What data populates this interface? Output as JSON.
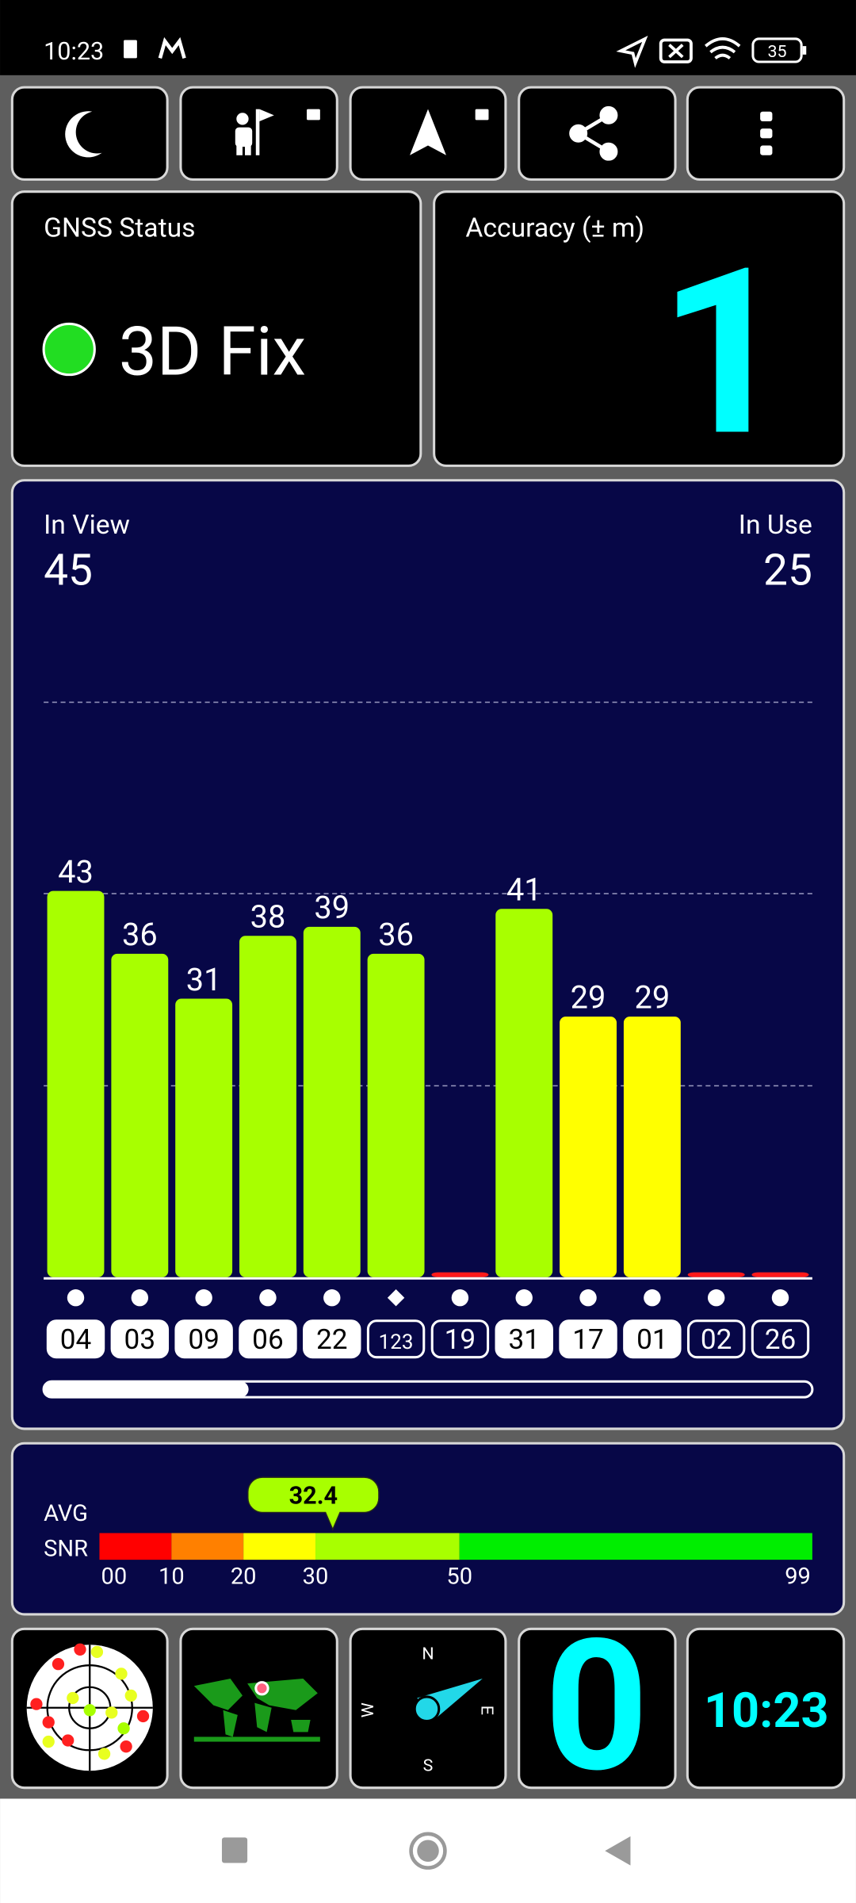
{
  "status_bar": {
    "time": "10:23",
    "battery": "35"
  },
  "gnss_status": {
    "title": "GNSS Status",
    "value": "3D Fix"
  },
  "accuracy": {
    "title": "Accuracy (± m)",
    "value": "1"
  },
  "satellites": {
    "in_view_label": "In View",
    "in_view": "45",
    "in_use_label": "In Use",
    "in_use": "25"
  },
  "chart_data": {
    "type": "bar",
    "categories": [
      "04",
      "03",
      "09",
      "06",
      "22",
      "123",
      "19",
      "31",
      "17",
      "01",
      "02",
      "26"
    ],
    "values": [
      43,
      36,
      31,
      38,
      39,
      36,
      0,
      41,
      29,
      29,
      0,
      0
    ],
    "value_labels": [
      "43",
      "36",
      "31",
      "38",
      "39",
      "36",
      null,
      "41",
      "29",
      "29",
      null,
      null
    ],
    "colors": [
      "#a8ff00",
      "#a8ff00",
      "#a8ff00",
      "#a8ff00",
      "#a8ff00",
      "#a8ff00",
      "#ff1a1a",
      "#a8ff00",
      "#ffff00",
      "#ffff00",
      "#ff1a1a",
      "#ff1a1a"
    ],
    "markers": [
      "dot",
      "dot",
      "dot",
      "dot",
      "dot",
      "diamond",
      "dot",
      "dot",
      "dot",
      "dot",
      "dot",
      "dot"
    ],
    "in_use": [
      true,
      true,
      true,
      true,
      true,
      false,
      false,
      true,
      true,
      true,
      false,
      false
    ],
    "ylim": [
      0,
      64
    ],
    "grid_values": [
      21.3,
      42.7,
      64
    ]
  },
  "snr": {
    "label_lines": [
      "AVG",
      "SNR"
    ],
    "avg": 32.4,
    "xlim": [
      0,
      99
    ],
    "ticks": [
      {
        "value": 0,
        "label": "00"
      },
      10,
      20,
      30,
      50,
      99
    ],
    "segment_colors": [
      "#ff0000",
      "#ff8000",
      "#ffff00",
      "#a8ff00",
      "#00ee00"
    ]
  },
  "tiles": {
    "compass": [
      "N",
      "E",
      "S",
      "W"
    ],
    "counter": "0",
    "clock": "10:23"
  }
}
